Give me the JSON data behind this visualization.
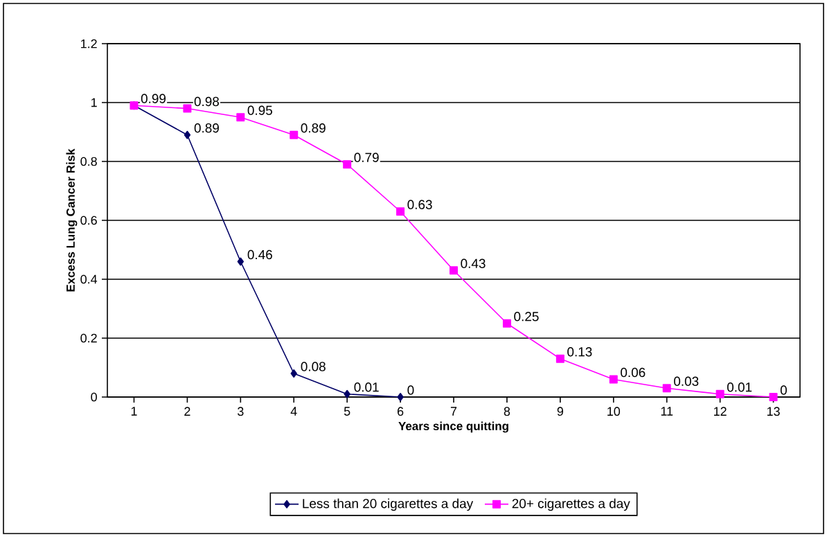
{
  "chart_data": {
    "type": "line",
    "xlabel": "Years since quitting",
    "ylabel": "Excess Lung Cancer Risk",
    "categories": [
      "1",
      "2",
      "3",
      "4",
      "5",
      "6",
      "7",
      "8",
      "9",
      "10",
      "11",
      "12",
      "13"
    ],
    "series": [
      {
        "name": "Less than 20 cigarettes a day",
        "color": "#000066",
        "marker": "diamond",
        "values": [
          0.99,
          0.89,
          0.46,
          0.08,
          0.01,
          0,
          null,
          null,
          null,
          null,
          null,
          null,
          null
        ],
        "value_labels": [
          null,
          "0.89",
          "0.46",
          "0.08",
          "0.01",
          "0",
          null,
          null,
          null,
          null,
          null,
          null,
          null
        ]
      },
      {
        "name": "20+ cigarettes a day",
        "color": "#ff00ff",
        "marker": "square",
        "values": [
          0.99,
          0.98,
          0.95,
          0.89,
          0.79,
          0.63,
          0.43,
          0.25,
          0.13,
          0.06,
          0.03,
          0.01,
          0
        ],
        "value_labels": [
          "0.99",
          "0.98",
          "0.95",
          "0.89",
          "0.79",
          "0.63",
          "0.43",
          "0.25",
          "0.13",
          "0.06",
          "0.03",
          "0.01",
          "0"
        ]
      }
    ],
    "ylim": [
      0,
      1.2
    ],
    "yticks": [
      0,
      0.2,
      0.4,
      0.6,
      0.8,
      1,
      1.2
    ],
    "grid": "y",
    "legend": "bottom",
    "line_style": "solid"
  }
}
